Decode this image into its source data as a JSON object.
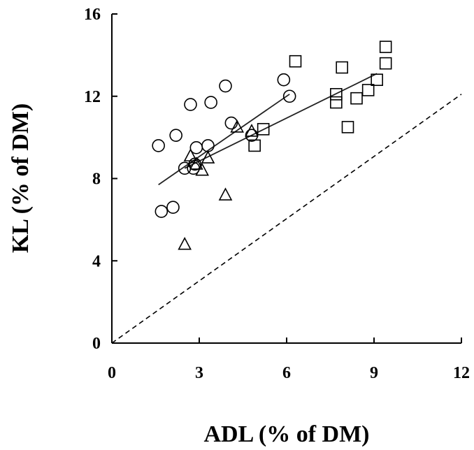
{
  "chart_data": {
    "type": "scatter",
    "title": "",
    "xlabel": "ADL (% of DM)",
    "ylabel": "KL (% of DM)",
    "xlim": [
      0,
      12
    ],
    "ylim": [
      0,
      16
    ],
    "xticks": [
      0,
      3,
      6,
      9,
      12
    ],
    "yticks": [
      0,
      4,
      8,
      12,
      16
    ],
    "x_tick_labels": [
      "0",
      "3",
      "6",
      "9",
      "12"
    ],
    "y_tick_labels": [
      "0",
      "4",
      "8",
      "12",
      "16"
    ],
    "grid": false,
    "legend": "none",
    "series": [
      {
        "marker": "circle",
        "points": [
          [
            1.6,
            9.6
          ],
          [
            1.7,
            6.4
          ],
          [
            2.1,
            6.6
          ],
          [
            2.2,
            10.1
          ],
          [
            2.5,
            8.5
          ],
          [
            2.7,
            11.6
          ],
          [
            2.8,
            8.5
          ],
          [
            2.85,
            8.7
          ],
          [
            2.9,
            9.5
          ],
          [
            3.3,
            9.6
          ],
          [
            3.4,
            11.7
          ],
          [
            3.9,
            12.5
          ],
          [
            4.1,
            10.7
          ],
          [
            4.8,
            10.1
          ],
          [
            5.9,
            12.8
          ],
          [
            6.1,
            12.0
          ]
        ]
      },
      {
        "marker": "square",
        "points": [
          [
            5.2,
            10.4
          ],
          [
            4.9,
            9.6
          ],
          [
            6.3,
            13.7
          ],
          [
            7.7,
            12.1
          ],
          [
            7.7,
            11.7
          ],
          [
            7.9,
            13.4
          ],
          [
            8.1,
            10.5
          ],
          [
            8.4,
            11.9
          ],
          [
            8.8,
            12.3
          ],
          [
            9.1,
            12.8
          ],
          [
            9.4,
            14.4
          ],
          [
            9.4,
            13.6
          ]
        ]
      },
      {
        "marker": "triangle",
        "points": [
          [
            2.5,
            4.8
          ],
          [
            2.7,
            9.1
          ],
          [
            2.9,
            8.7
          ],
          [
            3.1,
            8.4
          ],
          [
            3.3,
            9.0
          ],
          [
            3.9,
            7.2
          ],
          [
            4.3,
            10.5
          ],
          [
            4.8,
            10.3
          ]
        ]
      }
    ],
    "fit_lines": [
      {
        "style": "solid",
        "points": [
          [
            1.6,
            7.7
          ],
          [
            6.1,
            12.1
          ]
        ]
      },
      {
        "style": "solid",
        "points": [
          [
            2.5,
            8.5
          ],
          [
            9.1,
            13.1
          ]
        ]
      }
    ],
    "reference_line": {
      "style": "dashed",
      "points": [
        [
          0,
          0
        ],
        [
          12,
          12.1
        ]
      ]
    },
    "colors": {
      "ink": "#000000",
      "background": "#ffffff"
    }
  }
}
